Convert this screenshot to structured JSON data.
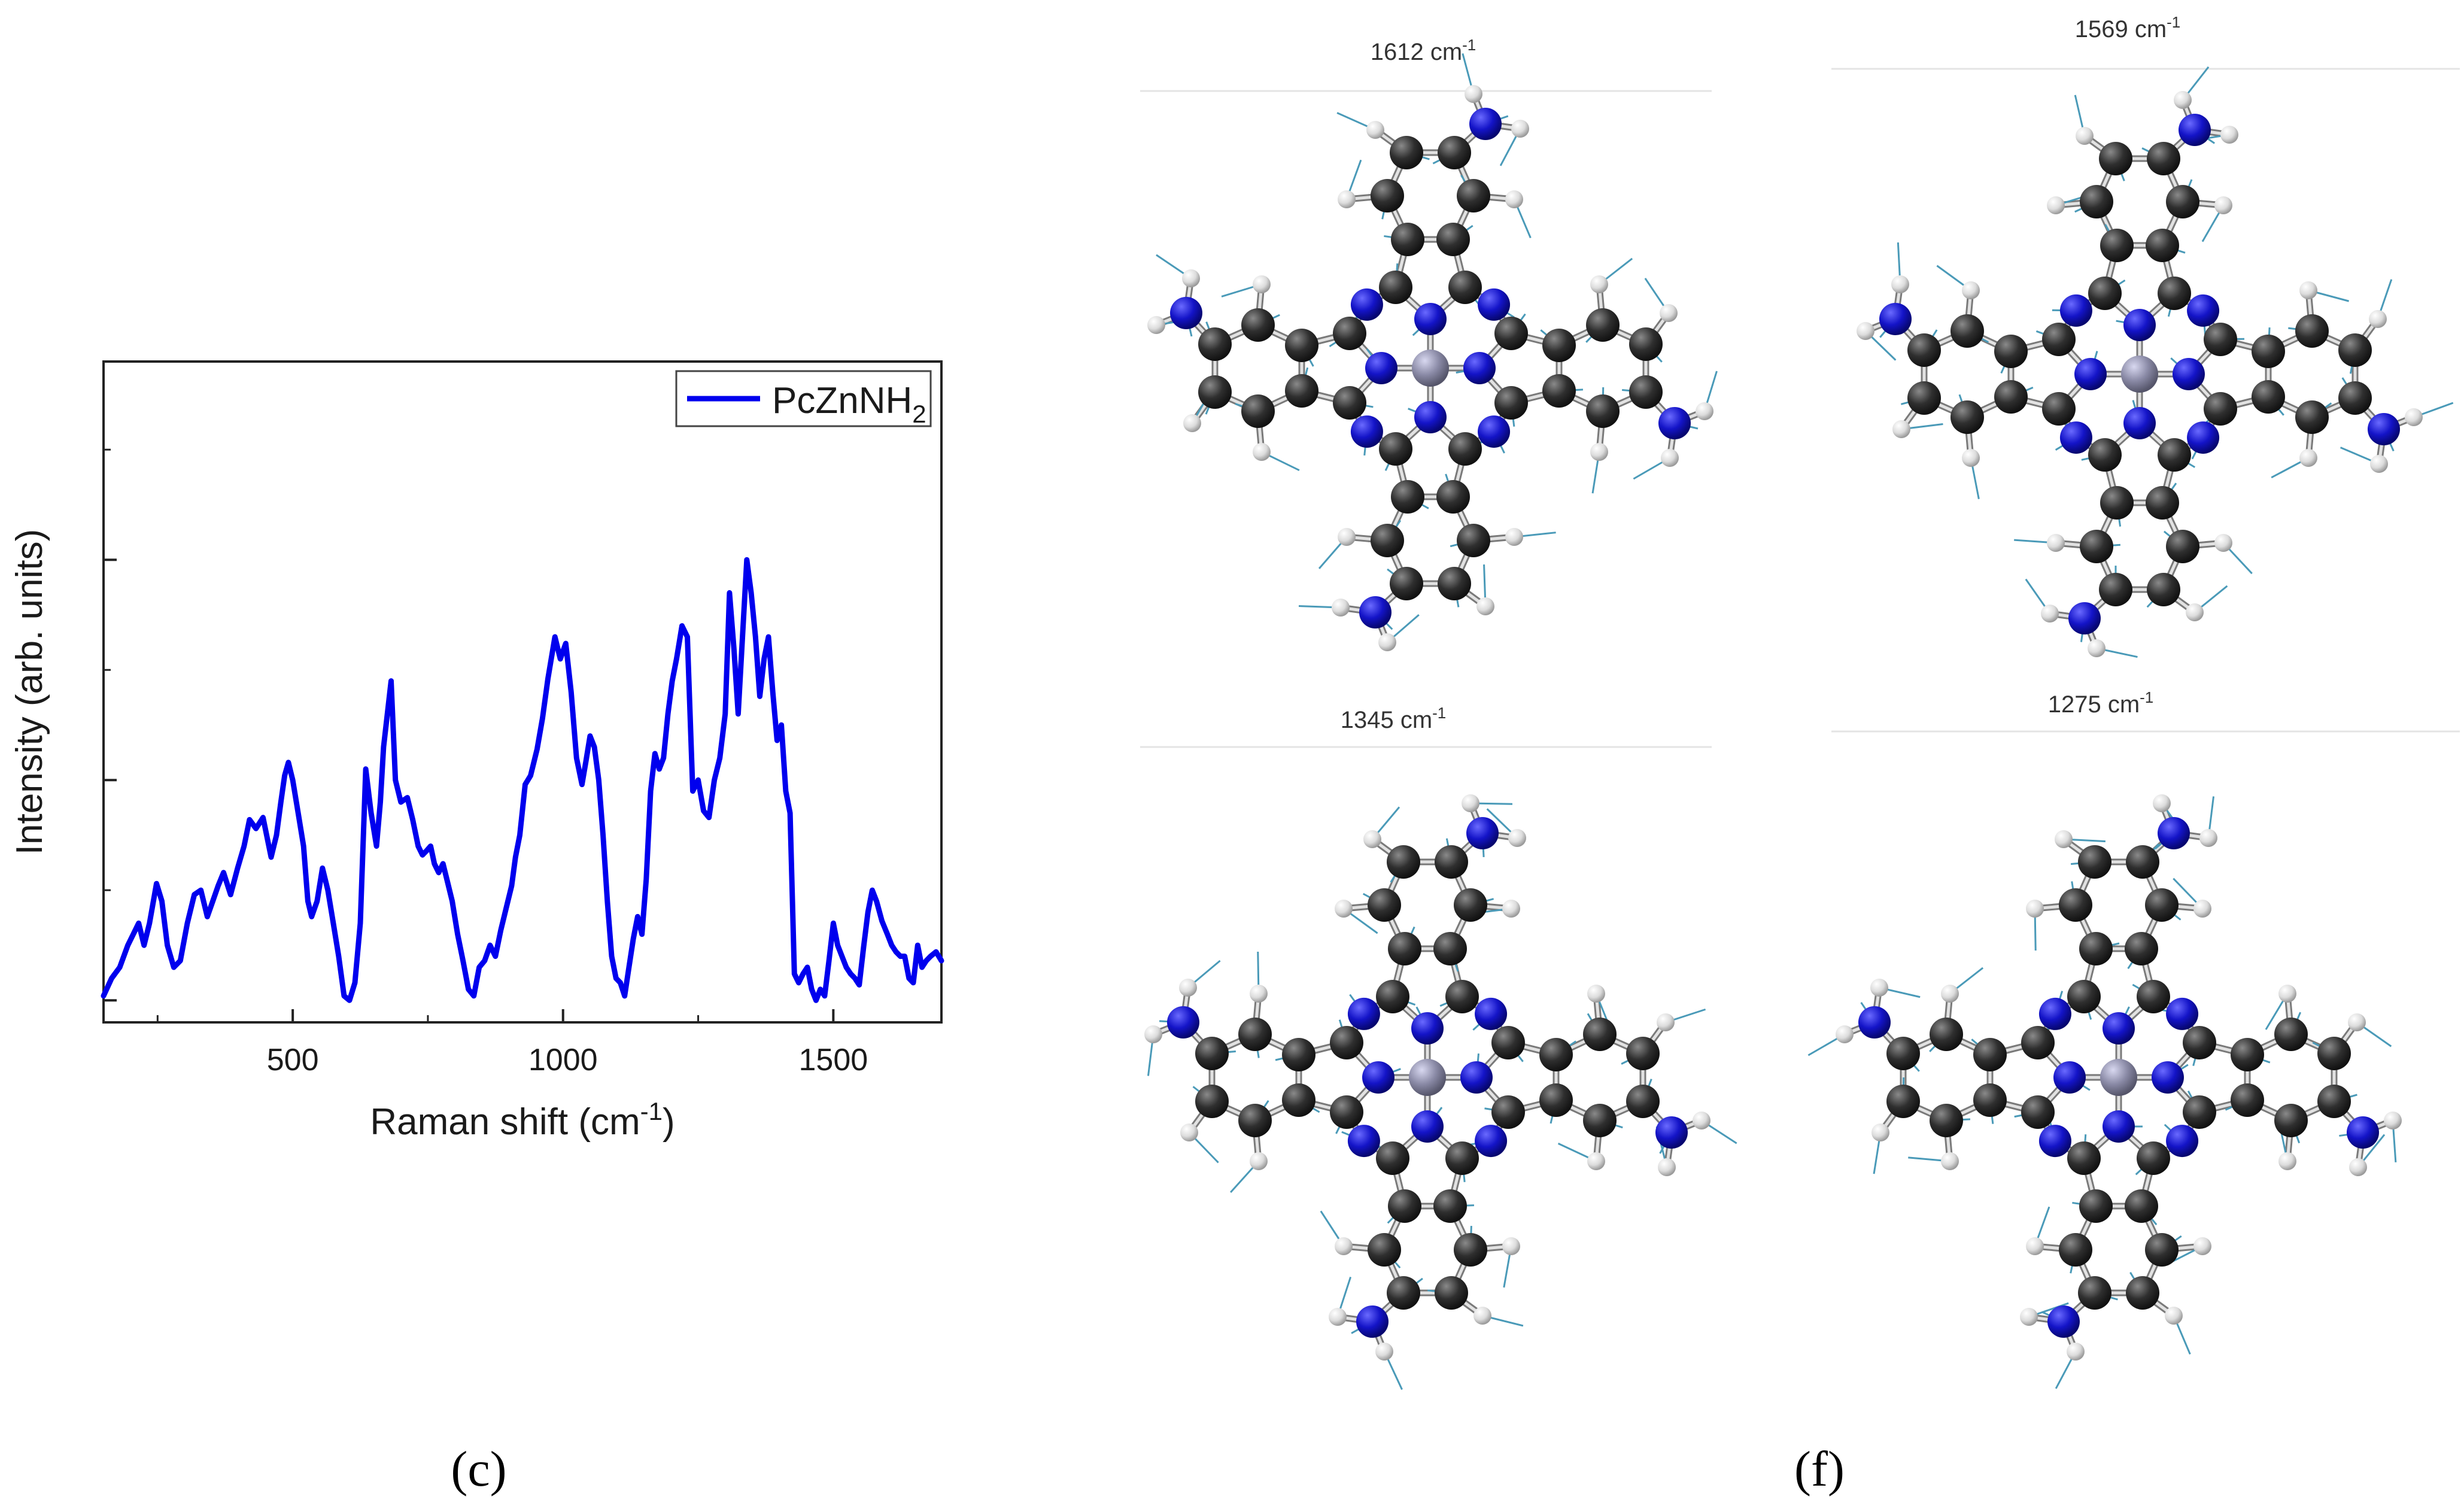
{
  "panels": {
    "left_label": "(c)",
    "right_label": "(f)"
  },
  "chart_data": {
    "type": "line",
    "xlabel_main": "Raman shift (cm",
    "xlabel_sup": "-1",
    "xlabel_tail": ")",
    "ylabel": "Intensity (arb. units)",
    "xlim": [
      150,
      1700
    ],
    "ylim": [
      0,
      300
    ],
    "xticks": [
      500,
      1000,
      1500
    ],
    "xtick_labels": [
      "500",
      "1000",
      "1500"
    ],
    "minor_xticks": [
      250,
      750,
      1250
    ],
    "yticks": [
      10,
      110,
      210
    ],
    "minor_yticks": [
      60,
      160,
      260
    ],
    "legend_position": "top-right",
    "grid": false,
    "series": [
      {
        "name_main": "PcZnNH",
        "name_sub": "2",
        "color": "#0000ee",
        "x": [
          150,
          165,
          180,
          195,
          205,
          215,
          225,
          235,
          248,
          258,
          268,
          280,
          292,
          305,
          318,
          330,
          342,
          352,
          362,
          372,
          385,
          398,
          410,
          420,
          432,
          445,
          460,
          470,
          478,
          485,
          492,
          500,
          510,
          520,
          528,
          535,
          545,
          555,
          565,
          575,
          585,
          595,
          605,
          615,
          625,
          635,
          645,
          655,
          662,
          668,
          675,
          682,
          690,
          700,
          712,
          722,
          732,
          740,
          748,
          755,
          762,
          770,
          778,
          786,
          795,
          805,
          815,
          825,
          835,
          845,
          855,
          865,
          875,
          885,
          895,
          905,
          912,
          920,
          930,
          940,
          952,
          962,
          972,
          985,
          995,
          1005,
          1015,
          1025,
          1035,
          1042,
          1050,
          1058,
          1066,
          1074,
          1082,
          1090,
          1098,
          1106,
          1114,
          1122,
          1130,
          1138,
          1146,
          1154,
          1162,
          1170,
          1178,
          1186,
          1194,
          1202,
          1210,
          1220,
          1230,
          1240,
          1250,
          1260,
          1270,
          1280,
          1290,
          1300,
          1308,
          1316,
          1324,
          1332,
          1340,
          1348,
          1356,
          1364,
          1372,
          1380,
          1388,
          1396,
          1404,
          1412,
          1420,
          1428,
          1436,
          1444,
          1452,
          1460,
          1468,
          1476,
          1484,
          1492,
          1500,
          1508,
          1516,
          1524,
          1532,
          1540,
          1548,
          1556,
          1564,
          1572,
          1580,
          1590,
          1600,
          1608,
          1616,
          1624,
          1632,
          1640,
          1648,
          1656,
          1664,
          1672,
          1680,
          1690,
          1700
        ],
        "y": [
          12,
          20,
          25,
          35,
          40,
          45,
          35,
          45,
          63,
          55,
          35,
          25,
          28,
          45,
          58,
          60,
          48,
          55,
          62,
          68,
          58,
          70,
          80,
          92,
          88,
          93,
          75,
          85,
          100,
          112,
          118,
          110,
          95,
          80,
          55,
          48,
          55,
          70,
          60,
          45,
          30,
          12,
          10,
          18,
          45,
          115,
          95,
          80,
          100,
          125,
          140,
          155,
          110,
          100,
          102,
          92,
          80,
          76,
          78,
          80,
          72,
          68,
          72,
          64,
          55,
          40,
          28,
          15,
          12,
          25,
          28,
          35,
          30,
          42,
          52,
          62,
          75,
          85,
          108,
          112,
          124,
          138,
          156,
          175,
          165,
          172,
          150,
          120,
          108,
          118,
          130,
          125,
          110,
          85,
          55,
          30,
          20,
          18,
          12,
          25,
          38,
          48,
          40,
          65,
          105,
          122,
          115,
          120,
          140,
          155,
          165,
          180,
          175,
          105,
          110,
          96,
          93,
          110,
          120,
          140,
          195,
          170,
          140,
          175,
          210,
          195,
          175,
          148,
          165,
          175,
          150,
          128,
          135,
          105,
          95,
          22,
          18,
          22,
          25,
          15,
          10,
          15,
          12,
          28,
          45,
          35,
          30,
          25,
          22,
          20,
          17,
          34,
          50,
          60,
          55,
          46,
          40,
          35,
          32,
          30,
          30,
          20,
          18,
          35,
          25,
          28,
          30,
          32,
          28
        ]
      }
    ],
    "mode_frequencies": [
      "1612 cm",
      "1569 cm",
      "1345 cm",
      "1275 cm"
    ],
    "freq_unit_sup": "-1"
  }
}
